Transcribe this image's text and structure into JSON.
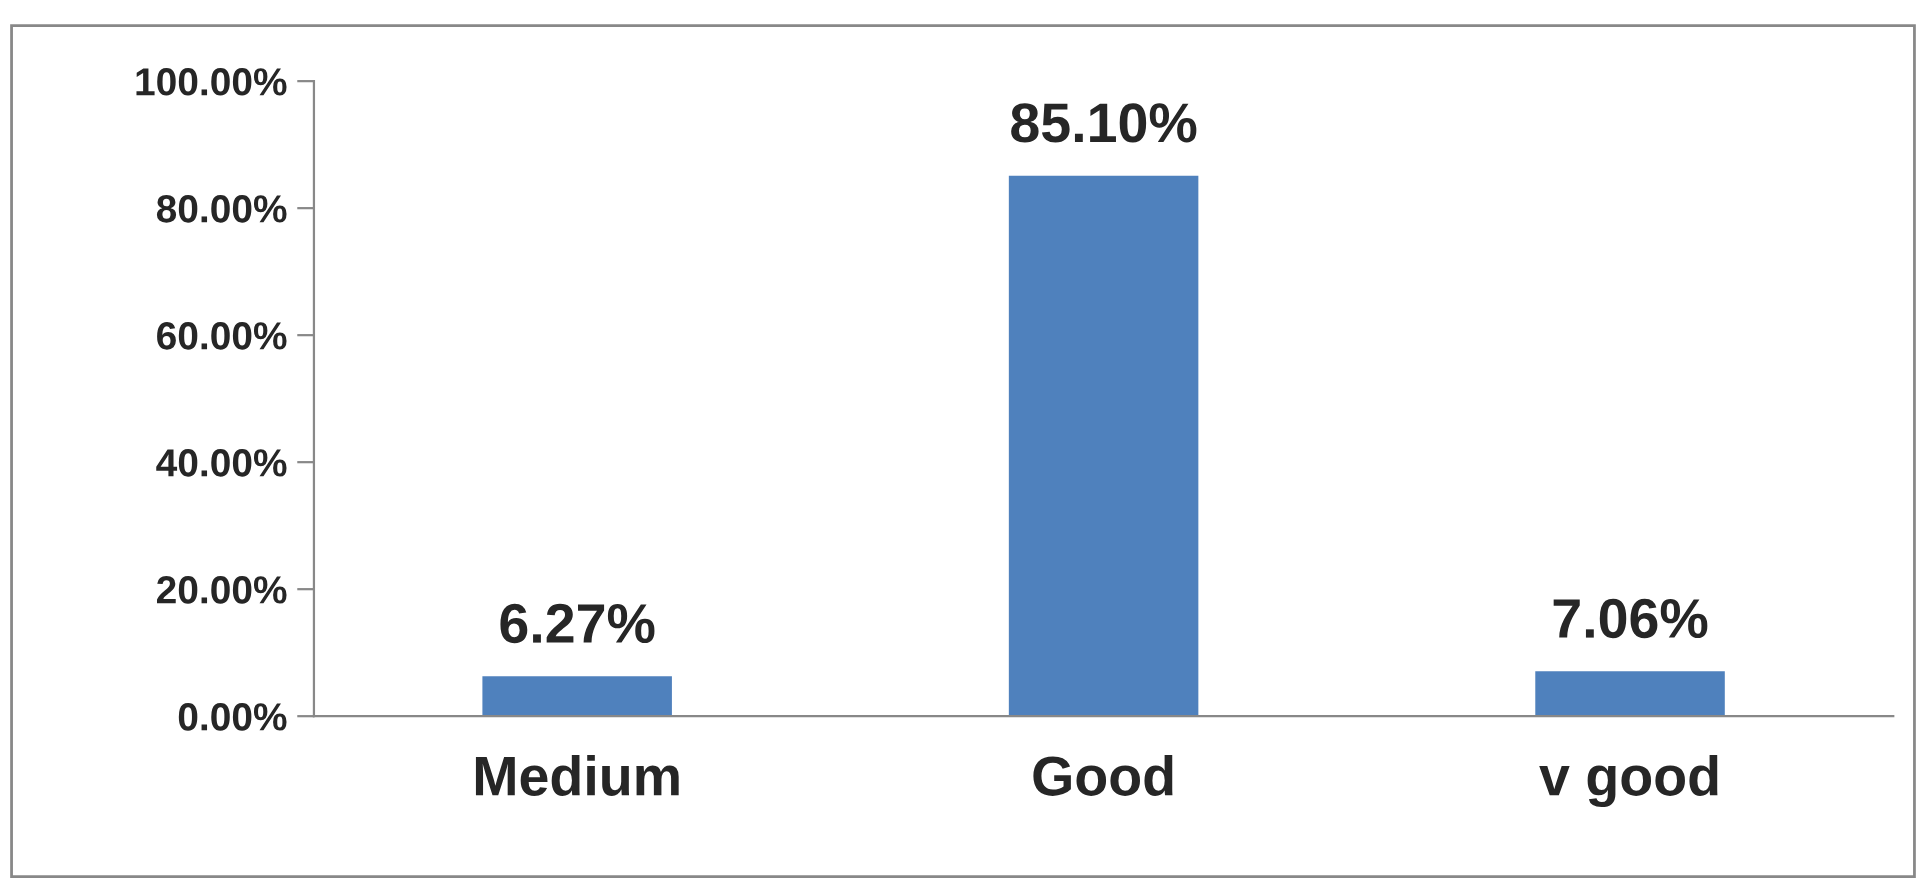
{
  "chart_data": {
    "type": "bar",
    "categories": [
      "Medium",
      "Good",
      "v good"
    ],
    "values": [
      6.27,
      85.1,
      7.06
    ],
    "color": "#4f81bd",
    "value_labels": [
      "6.27%",
      "85.10%",
      "7.06%"
    ],
    "ylim": [
      0,
      100
    ],
    "yticks": [
      {
        "value": 0,
        "label": "0.00%"
      },
      {
        "value": 20,
        "label": "20.00%"
      },
      {
        "value": 40,
        "label": "40.00%"
      },
      {
        "value": 60,
        "label": "60.00%"
      },
      {
        "value": 80,
        "label": "80.00%"
      },
      {
        "value": 100,
        "label": "100.00%"
      }
    ],
    "grid": false,
    "legend": false
  }
}
